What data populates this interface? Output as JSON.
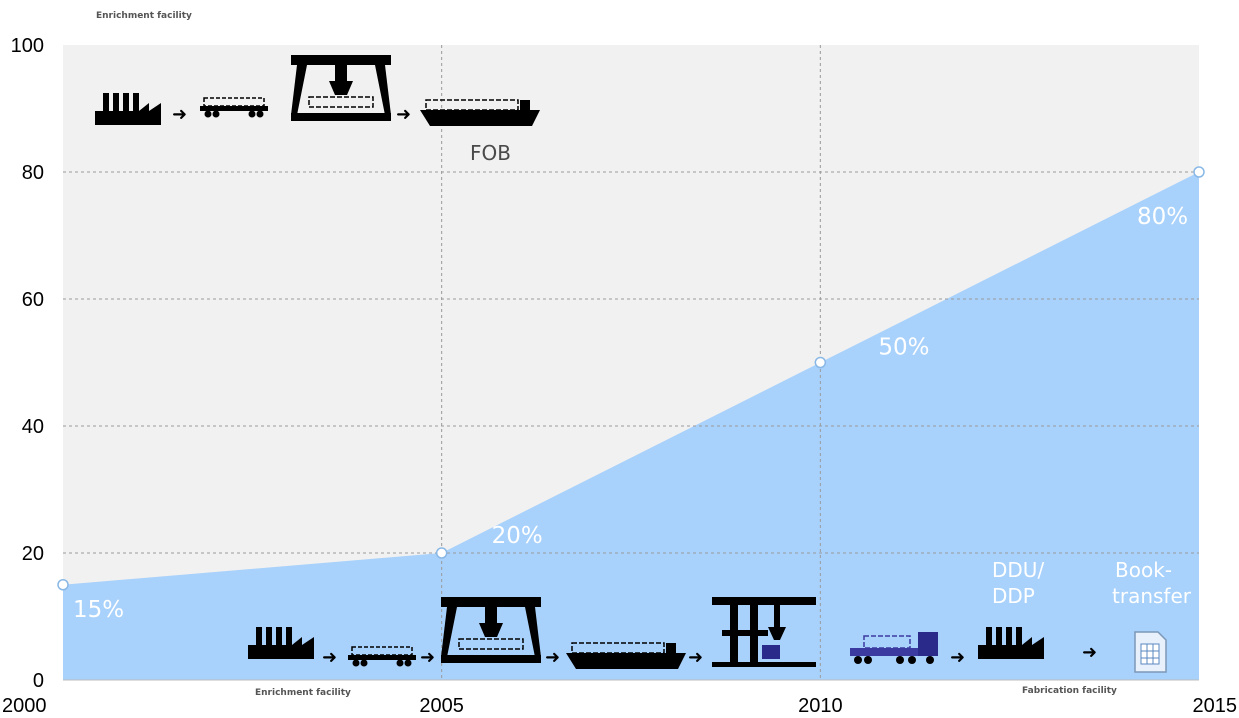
{
  "chart_data": {
    "type": "area",
    "x": [
      2000,
      2005,
      2010,
      2015
    ],
    "values": [
      15,
      20,
      50,
      80
    ],
    "xlim": [
      2000,
      2015
    ],
    "ylim": [
      0,
      100
    ],
    "yticks": [
      0,
      20,
      40,
      60,
      80,
      100
    ],
    "xticks": [
      2000,
      2005,
      2010,
      2015
    ],
    "grid": true,
    "data_labels": [
      "15%",
      "20%",
      "50%",
      "80%"
    ],
    "colors": {
      "area": "#a8d1fb",
      "background": "#f1f1f1",
      "grid": "#9a9a9a",
      "marker": "#ffffff"
    }
  },
  "annotations": {
    "top_flow_label": "FOB",
    "top_start_label": "Enrichment facility",
    "bottom_start_label": "Enrichment facility",
    "bottom_end_label": "Fabrication facility",
    "ddu_label_line1": "DDU/",
    "ddu_label_line2": "DDP",
    "book_label_line1": "Book-",
    "book_label_line2": "transfer",
    "icons": [
      "factory-icon",
      "rail-wagon-icon",
      "gantry-crane-icon",
      "cargo-ship-icon",
      "container-crane-icon",
      "truck-icon",
      "document-icon"
    ]
  }
}
